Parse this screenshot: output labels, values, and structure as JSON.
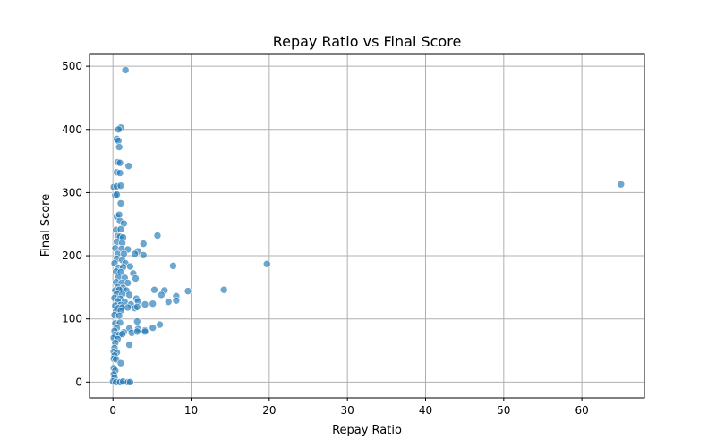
{
  "chart_data": {
    "type": "scatter",
    "title": "Repay Ratio vs Final Score",
    "xlabel": "Repay Ratio",
    "ylabel": "Final Score",
    "xlim": [
      -3,
      68
    ],
    "ylim": [
      -25,
      520
    ],
    "xticks": [
      0,
      10,
      20,
      30,
      40,
      50,
      60
    ],
    "yticks": [
      0,
      100,
      200,
      300,
      400,
      500
    ],
    "grid": true,
    "point_color": "#1f77b4",
    "points": [
      [
        1.6,
        494
      ],
      [
        1.0,
        403
      ],
      [
        0.7,
        400
      ],
      [
        0.5,
        385
      ],
      [
        0.7,
        382
      ],
      [
        0.8,
        372
      ],
      [
        0.6,
        348
      ],
      [
        0.9,
        347
      ],
      [
        2.0,
        342
      ],
      [
        0.5,
        332
      ],
      [
        0.9,
        331
      ],
      [
        0.1,
        309
      ],
      [
        0.5,
        310
      ],
      [
        1.0,
        311
      ],
      [
        0.3,
        296
      ],
      [
        0.5,
        297
      ],
      [
        1.0,
        283
      ],
      [
        0.5,
        262
      ],
      [
        0.8,
        265
      ],
      [
        0.9,
        255
      ],
      [
        1.4,
        251
      ],
      [
        0.4,
        241
      ],
      [
        1.0,
        242
      ],
      [
        0.6,
        231
      ],
      [
        0.9,
        230
      ],
      [
        1.3,
        229
      ],
      [
        5.7,
        232
      ],
      [
        0.5,
        222
      ],
      [
        1.2,
        220
      ],
      [
        3.9,
        219
      ],
      [
        0.3,
        212
      ],
      [
        1.1,
        211
      ],
      [
        1.9,
        210
      ],
      [
        3.2,
        207
      ],
      [
        0.6,
        203
      ],
      [
        1.4,
        203
      ],
      [
        2.8,
        203
      ],
      [
        3.9,
        201
      ],
      [
        0.5,
        195
      ],
      [
        1.2,
        193
      ],
      [
        0.2,
        188
      ],
      [
        1.6,
        188
      ],
      [
        7.7,
        184
      ],
      [
        19.7,
        187
      ],
      [
        0.7,
        181
      ],
      [
        1.3,
        182
      ],
      [
        2.2,
        183
      ],
      [
        0.4,
        175
      ],
      [
        1.0,
        174
      ],
      [
        2.6,
        172
      ],
      [
        0.7,
        166
      ],
      [
        1.5,
        165
      ],
      [
        2.9,
        164
      ],
      [
        0.4,
        158
      ],
      [
        1.1,
        157
      ],
      [
        1.9,
        157
      ],
      [
        0.6,
        150
      ],
      [
        1.3,
        149
      ],
      [
        0.3,
        145
      ],
      [
        0.8,
        146
      ],
      [
        1.7,
        145
      ],
      [
        5.3,
        146
      ],
      [
        6.6,
        145
      ],
      [
        9.6,
        144
      ],
      [
        14.2,
        146
      ],
      [
        0.5,
        140
      ],
      [
        1.2,
        139
      ],
      [
        2.1,
        138
      ],
      [
        6.2,
        138
      ],
      [
        8.1,
        136
      ],
      [
        0.2,
        133
      ],
      [
        0.9,
        132
      ],
      [
        3.0,
        132
      ],
      [
        0.6,
        128
      ],
      [
        1.5,
        127
      ],
      [
        3.2,
        128
      ],
      [
        7.1,
        127
      ],
      [
        8.1,
        129
      ],
      [
        0.3,
        121
      ],
      [
        1.0,
        122
      ],
      [
        2.3,
        123
      ],
      [
        4.1,
        123
      ],
      [
        5.1,
        124
      ],
      [
        0.7,
        117
      ],
      [
        1.2,
        118
      ],
      [
        1.9,
        118
      ],
      [
        2.8,
        117
      ],
      [
        3.1,
        119
      ],
      [
        0.4,
        112
      ],
      [
        1.0,
        113
      ],
      [
        0.2,
        106
      ],
      [
        0.8,
        105
      ],
      [
        3.1,
        96
      ],
      [
        0.3,
        93
      ],
      [
        0.9,
        94
      ],
      [
        6.0,
        91
      ],
      [
        5.1,
        86
      ],
      [
        0.5,
        86
      ],
      [
        2.1,
        85
      ],
      [
        3.2,
        84
      ],
      [
        4.1,
        82
      ],
      [
        0.2,
        81
      ],
      [
        1.4,
        79
      ],
      [
        2.4,
        78
      ],
      [
        3.1,
        80
      ],
      [
        4.1,
        80
      ],
      [
        0.3,
        75
      ],
      [
        0.8,
        75
      ],
      [
        1.2,
        76
      ],
      [
        0.1,
        70
      ],
      [
        0.6,
        68
      ],
      [
        2.1,
        59
      ],
      [
        0.3,
        62
      ],
      [
        0.2,
        54
      ],
      [
        0.1,
        48
      ],
      [
        0.5,
        47
      ],
      [
        0.2,
        42
      ],
      [
        0.1,
        37
      ],
      [
        0.4,
        36
      ],
      [
        1.0,
        30
      ],
      [
        0.1,
        22
      ],
      [
        0.3,
        18
      ],
      [
        0.1,
        12
      ],
      [
        0.2,
        7
      ],
      [
        0.0,
        1
      ],
      [
        0.4,
        0
      ],
      [
        0.9,
        0
      ],
      [
        1.3,
        1
      ],
      [
        1.9,
        0
      ],
      [
        2.2,
        0
      ],
      [
        65.0,
        313
      ]
    ]
  }
}
